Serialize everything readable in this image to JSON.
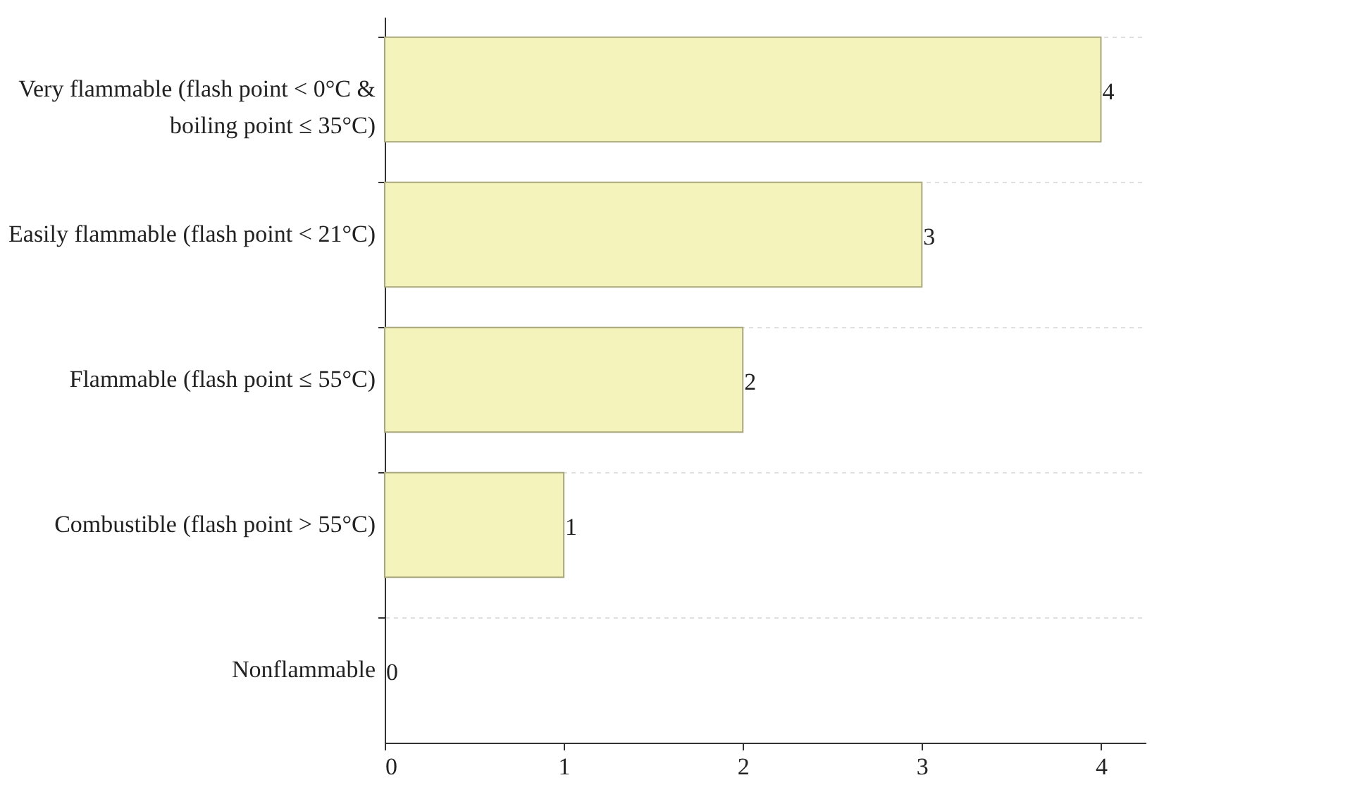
{
  "chart_data": {
    "type": "bar",
    "orientation": "horizontal",
    "categories": [
      "Very flammable (flash point < 0°C & boiling point ≤ 35°C)",
      "Easily flammable (flash point < 21°C)",
      "Flammable (flash point ≤ 55°C)",
      "Combustible (flash point > 55°C)",
      "Nonflammable"
    ],
    "values": [
      4,
      3,
      2,
      1,
      0
    ],
    "color": "#f5f3bc",
    "xlim": [
      0,
      4.25
    ],
    "xticks": [
      0,
      1,
      2,
      3,
      4
    ],
    "grid": "y",
    "data_labels": true
  }
}
